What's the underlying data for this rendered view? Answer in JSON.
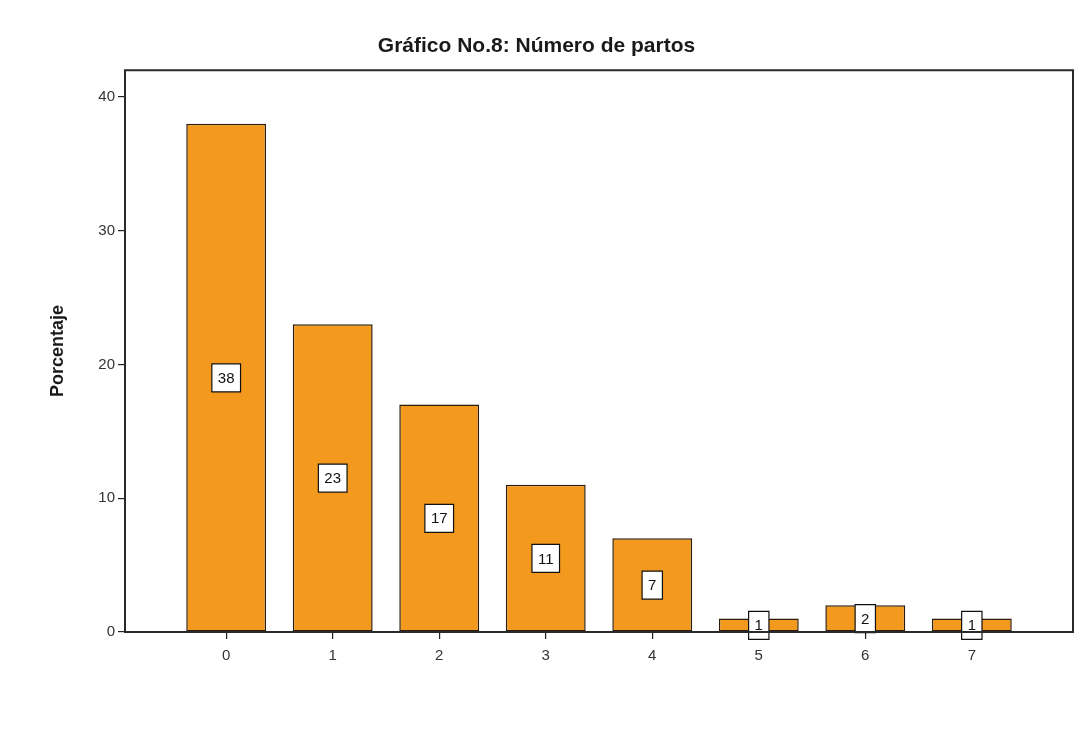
{
  "chart_data": {
    "type": "bar",
    "title": "Gráfico No.8: Número de partos",
    "ylabel": "Porcentaje",
    "categories": [
      "0",
      "1",
      "2",
      "3",
      "4",
      "5",
      "6",
      "7"
    ],
    "values": [
      38,
      23,
      17,
      11,
      7,
      1,
      2,
      1
    ],
    "color": "#f39a1e",
    "ylim": [
      0,
      42
    ],
    "yticks": [
      0,
      10,
      20,
      30,
      40
    ],
    "grid": false,
    "legend": false,
    "data_labels": true
  }
}
